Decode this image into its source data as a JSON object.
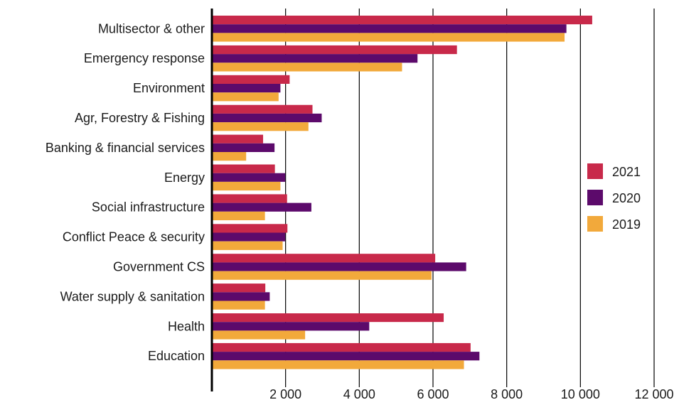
{
  "chart_data": {
    "type": "bar",
    "orientation": "horizontal",
    "categories": [
      "Multisector & other",
      "Emergency response",
      "Environment",
      "Agr, Forestry & Fishing",
      "Banking & financial services",
      "Energy",
      "Social infrastructure",
      "Conflict Peace & security",
      "Government CS",
      "Water supply & sanitation",
      "Health",
      "Education"
    ],
    "series": [
      {
        "name": "2021",
        "color": "#c8294a",
        "values": [
          10320,
          6650,
          2110,
          2730,
          1390,
          1710,
          2040,
          2050,
          6060,
          1450,
          6290,
          7020
        ]
      },
      {
        "name": "2020",
        "color": "#5c0a6b",
        "values": [
          9620,
          5580,
          1860,
          2980,
          1700,
          1990,
          2700,
          1990,
          6900,
          1570,
          4270,
          7260
        ]
      },
      {
        "name": "2019",
        "color": "#f2a93b",
        "values": [
          9570,
          5160,
          1810,
          2620,
          930,
          1860,
          1440,
          1920,
          5960,
          1440,
          2530,
          6840
        ]
      }
    ],
    "xticks": [
      "2 000",
      "4 000",
      "6 000",
      "8 000",
      "10 000",
      "12 000"
    ],
    "xtick_values": [
      2000,
      4000,
      6000,
      8000,
      10000,
      12000
    ],
    "xlim": [
      0,
      12000
    ],
    "grid": "vertical",
    "legend_position": "right"
  }
}
